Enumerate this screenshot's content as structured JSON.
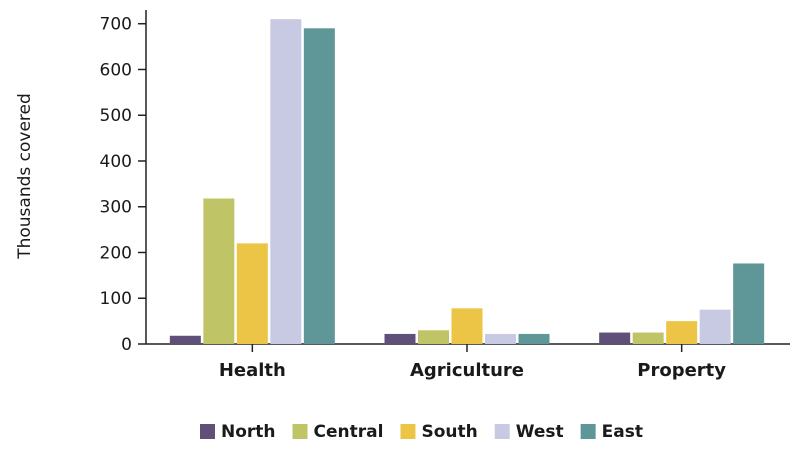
{
  "chart_data": {
    "type": "bar",
    "title": "",
    "xlabel": "",
    "ylabel": "Thousands covered",
    "categories": [
      "Health",
      "Agriculture",
      "Property"
    ],
    "ylim": [
      0,
      730
    ],
    "yticks": [
      0,
      100,
      200,
      300,
      400,
      500,
      600,
      700
    ],
    "grid": false,
    "legend_position": "bottom",
    "series": [
      {
        "name": "North",
        "color": "#5e5078",
        "values": [
          18,
          22,
          25
        ]
      },
      {
        "name": "Central",
        "color": "#bfc466",
        "values": [
          318,
          30,
          25
        ]
      },
      {
        "name": "South",
        "color": "#ecc547",
        "values": [
          220,
          78,
          50
        ]
      },
      {
        "name": "West",
        "color": "#c8cae3",
        "values": [
          710,
          22,
          75
        ]
      },
      {
        "name": "East",
        "color": "#5f9697",
        "values": [
          690,
          22,
          176
        ]
      }
    ]
  }
}
